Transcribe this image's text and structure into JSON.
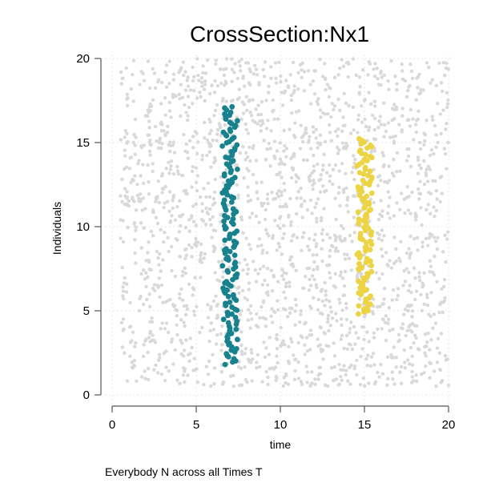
{
  "chart_data": {
    "type": "scatter",
    "title": "CrossSection:Nx1",
    "xlabel": "time",
    "ylabel": "Individuals",
    "note": "Everybody N across all Times T",
    "xlim": [
      -0.5,
      20.2
    ],
    "ylim": [
      -0.6,
      20.2
    ],
    "xticks": [
      0,
      5,
      10,
      15,
      20
    ],
    "yticks": [
      0,
      5,
      10,
      15,
      20
    ],
    "grid": true,
    "series": [
      {
        "role": "background",
        "color": "#d9d9d9",
        "description_values": {
          "x_range": [
            0.5,
            20
          ],
          "y_range": [
            0.5,
            20
          ],
          "count": 2000
        }
      },
      {
        "role": "highlight-1",
        "color": "#17828e",
        "x_center": 7,
        "x_jitter": 0.45,
        "y_range": [
          1.8,
          17.2
        ],
        "count": 150
      },
      {
        "role": "highlight-2",
        "color": "#ecd444",
        "x_center": 15,
        "x_jitter": 0.45,
        "y_range": [
          4.8,
          15.3
        ],
        "count": 110
      }
    ]
  }
}
